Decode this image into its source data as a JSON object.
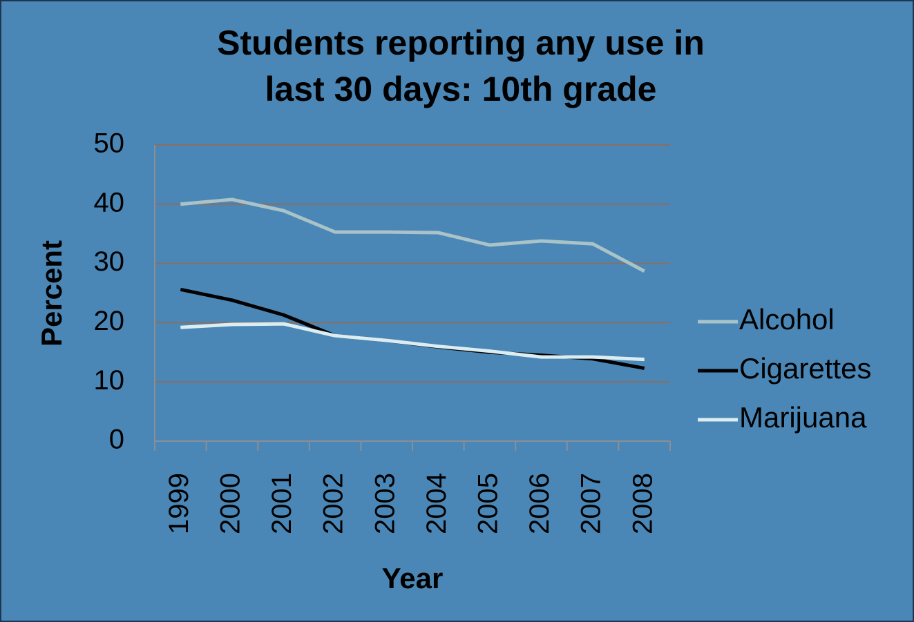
{
  "chart_data": {
    "type": "line",
    "title": [
      "Students reporting any use in",
      "last 30 days: 10th grade"
    ],
    "x_label": "Year",
    "y_label": "Percent",
    "categories": [
      "1999",
      "2000",
      "2001",
      "2002",
      "2003",
      "2004",
      "2005",
      "2006",
      "2007",
      "2008"
    ],
    "series": [
      {
        "name": "Alcohol",
        "color": "#a9c3c8",
        "values": [
          40.0,
          40.8,
          38.9,
          35.3,
          35.3,
          35.2,
          33.1,
          33.8,
          33.3,
          28.7
        ]
      },
      {
        "name": "Cigarettes",
        "color": "#000000",
        "values": [
          25.6,
          23.8,
          21.3,
          17.8,
          17.0,
          15.9,
          15.0,
          14.5,
          13.9,
          12.3
        ]
      },
      {
        "name": "Marijuana",
        "color": "#dcedf2",
        "values": [
          19.2,
          19.7,
          19.8,
          17.8,
          17.0,
          16.0,
          15.2,
          14.2,
          14.2,
          13.8
        ]
      }
    ],
    "ylim": [
      0,
      50
    ],
    "yticks": [
      0,
      10,
      20,
      30,
      40,
      50
    ],
    "grid": true,
    "legend": "right"
  }
}
